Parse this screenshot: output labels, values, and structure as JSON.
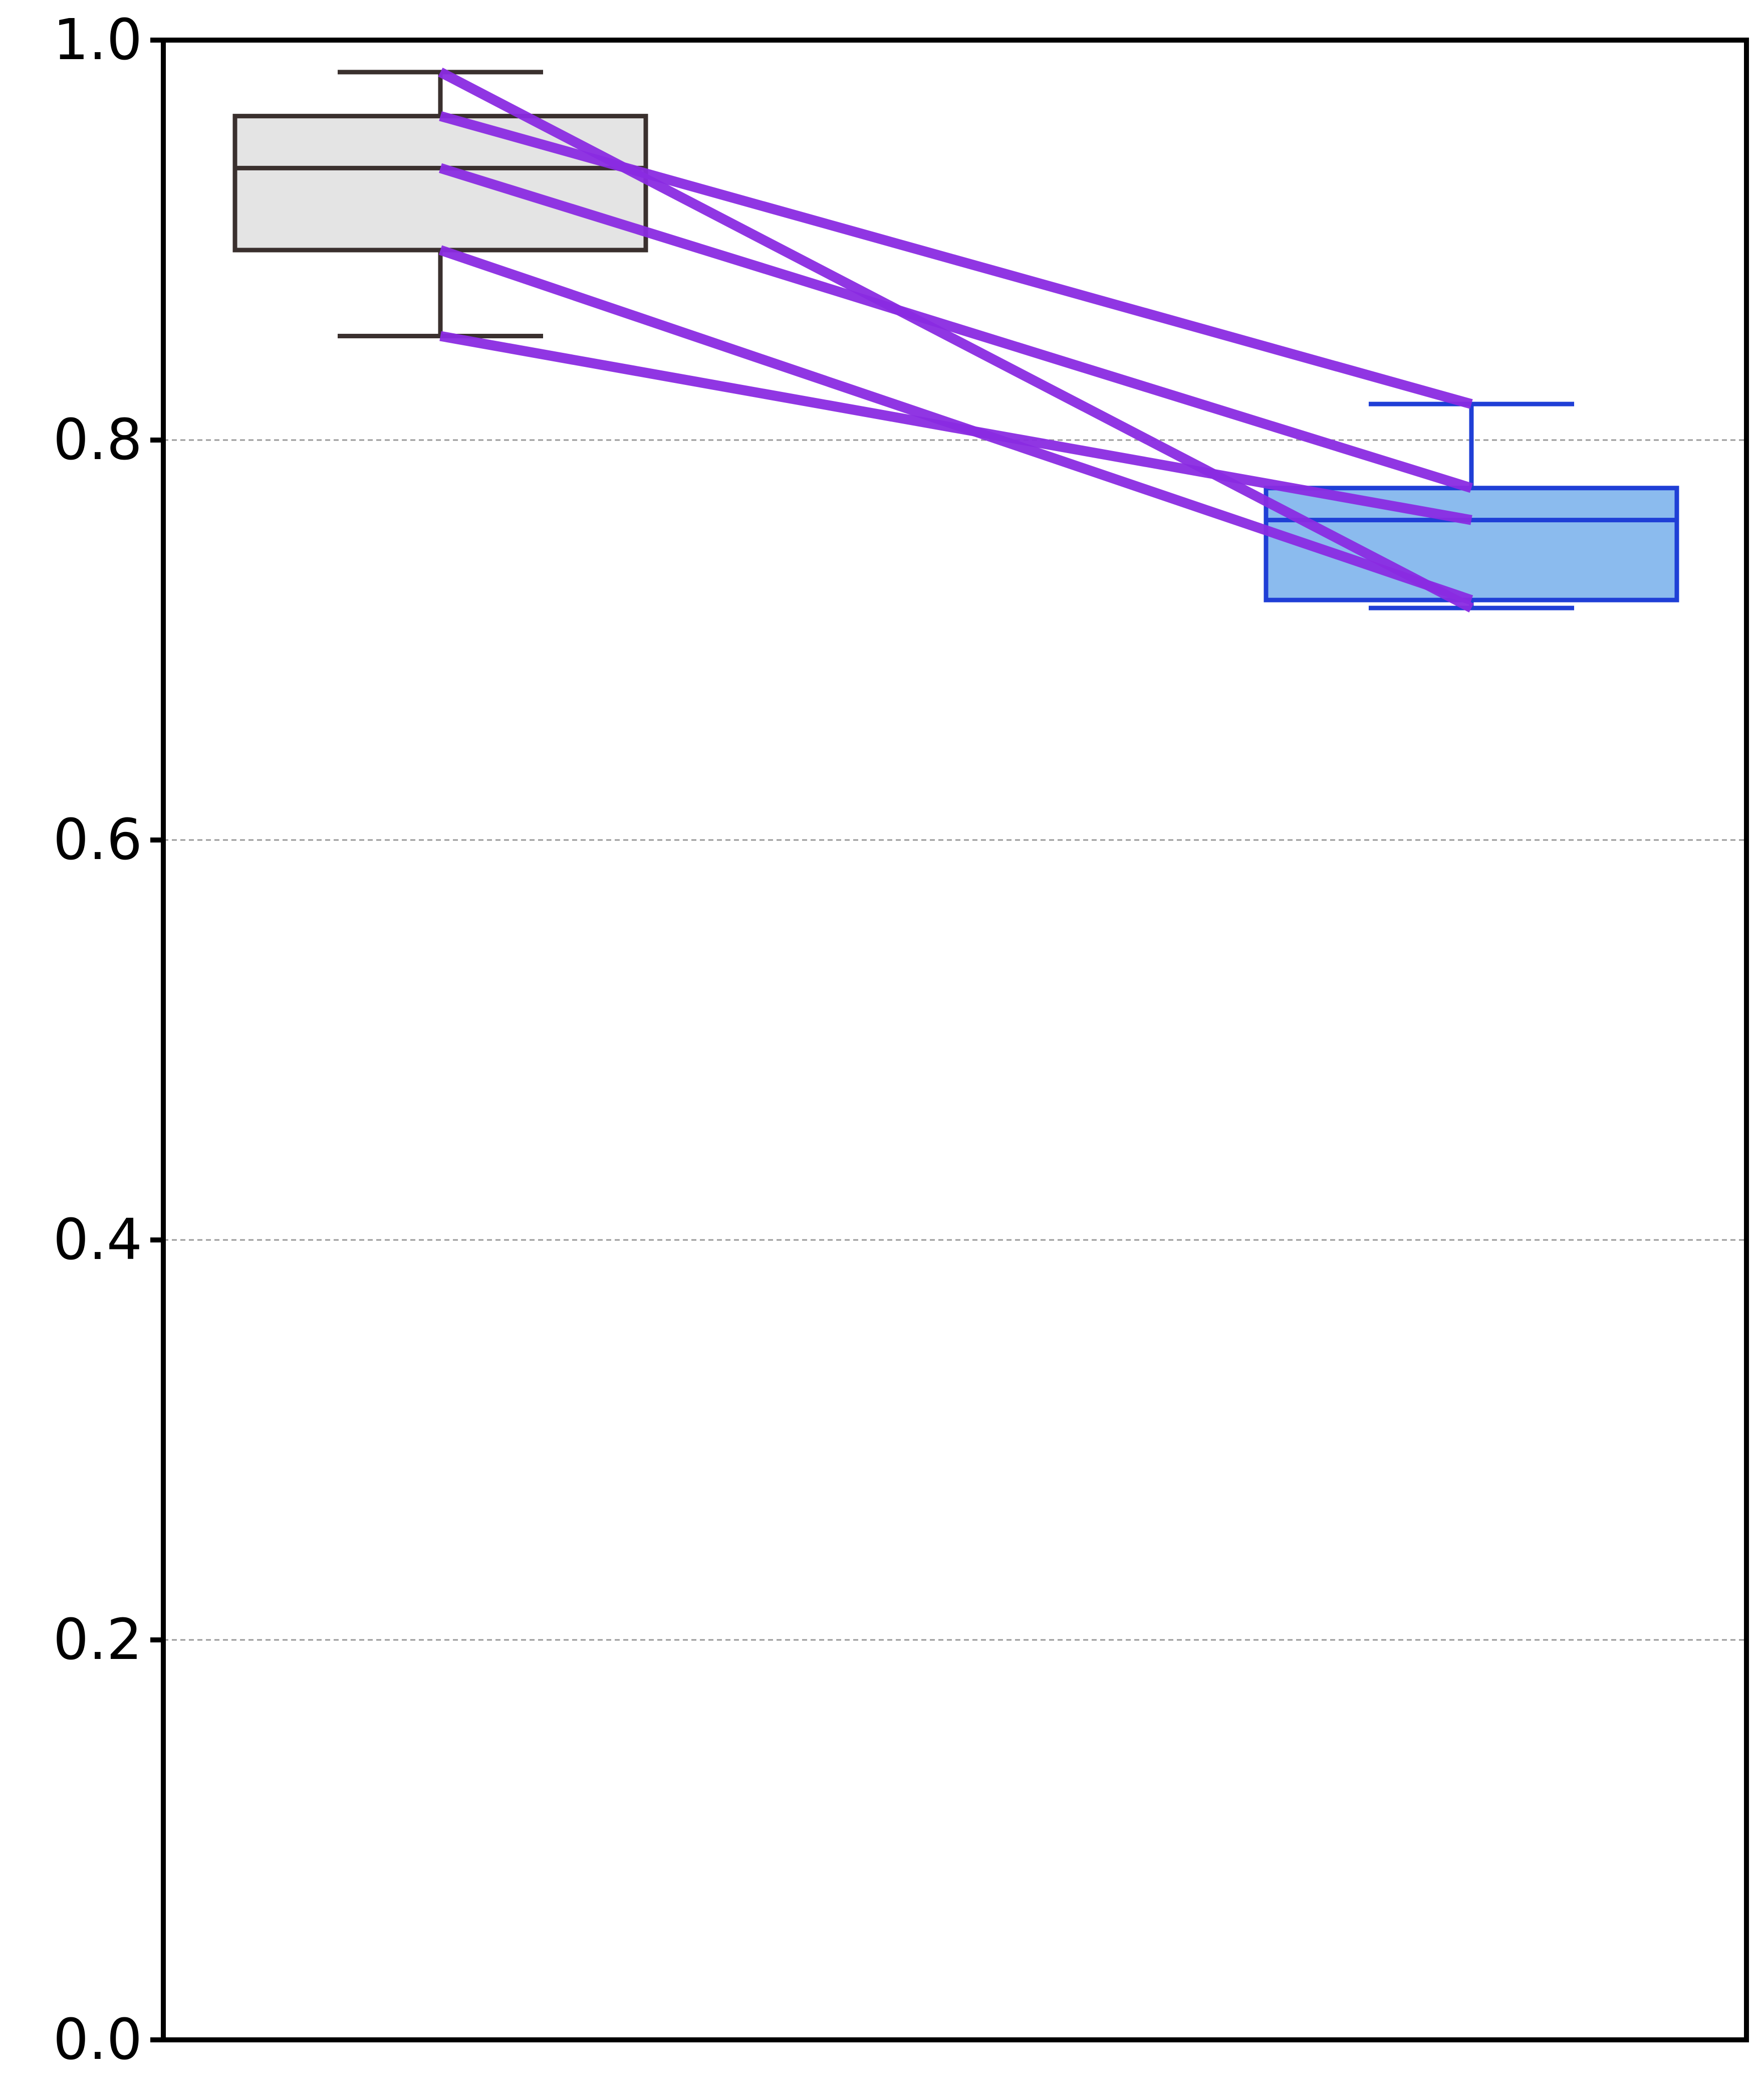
{
  "chart_data": {
    "type": "box",
    "title": "",
    "xlabel": "",
    "ylabel": "",
    "ylim": [
      0,
      1
    ],
    "y_ticks": [
      0.0,
      0.2,
      0.4,
      0.6,
      0.8,
      1.0
    ],
    "y_tick_labels": [
      "0.0",
      "0.2",
      "0.4",
      "0.6",
      "0.8",
      "1.0"
    ],
    "grid": {
      "y": true,
      "x": false,
      "style": "dashed"
    },
    "categories": [
      "",
      ""
    ],
    "boxes": [
      {
        "whisker_low": 0.852,
        "q1": 0.895,
        "median": 0.936,
        "q3": 0.962,
        "whisker_high": 0.984,
        "fill_color": "#e4e4e4",
        "edge_color": "#3a302e"
      },
      {
        "whisker_low": 0.716,
        "q1": 0.72,
        "median": 0.76,
        "q3": 0.776,
        "whisker_high": 0.818,
        "fill_color": "#8bbbee",
        "edge_color": "#1f3fd6"
      }
    ],
    "paired_lines": {
      "color": "#8a2be2",
      "pairs": [
        [
          0.984,
          0.716
        ],
        [
          0.962,
          0.818
        ],
        [
          0.936,
          0.776
        ],
        [
          0.895,
          0.72
        ],
        [
          0.852,
          0.76
        ]
      ]
    }
  }
}
